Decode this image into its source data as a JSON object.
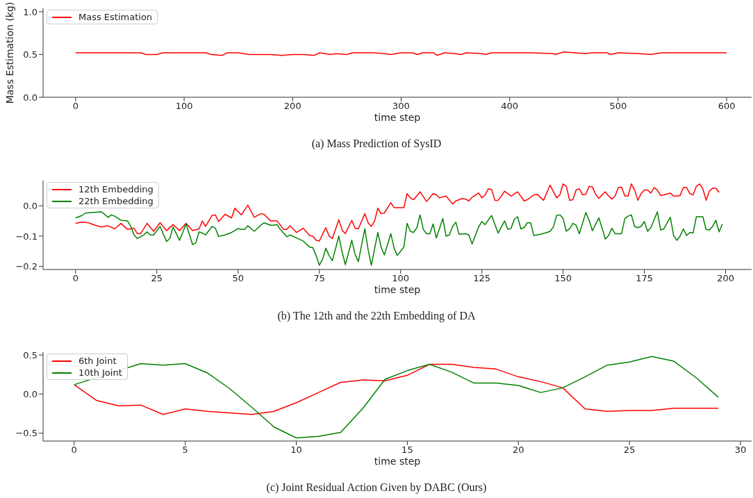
{
  "chart_data": [
    {
      "type": "line",
      "ylabel": "Mass Estimation (kg)",
      "xlabel": "time step",
      "annotations": [
        "(a) Mass Prediction of SysID"
      ],
      "legend": "top left",
      "xlim": [
        -30,
        623
      ],
      "ylim": [
        0,
        1.04
      ],
      "xticks": [
        0,
        100,
        200,
        300,
        400,
        500,
        600
      ],
      "yticks": [
        {
          "value": 0,
          "label": "0.0"
        },
        {
          "value": 0.5,
          "label": "0.5"
        },
        {
          "value": 1,
          "label": "1.0"
        }
      ],
      "series": [
        {
          "name": "Mass Estimation",
          "color": "#ff0000",
          "x": [
            0,
            20,
            40,
            60,
            65,
            75,
            80,
            100,
            120,
            125,
            135,
            140,
            150,
            160,
            180,
            190,
            200,
            210,
            220,
            225,
            235,
            240,
            250,
            255,
            270,
            275,
            285,
            290,
            300,
            310,
            315,
            320,
            330,
            333,
            340,
            350,
            355,
            360,
            375,
            378,
            383,
            400,
            420,
            440,
            442,
            450,
            460,
            470,
            475,
            490,
            493,
            500,
            520,
            530,
            540,
            560,
            580,
            600
          ],
          "values": [
            0.52,
            0.52,
            0.52,
            0.52,
            0.5,
            0.5,
            0.52,
            0.52,
            0.52,
            0.5,
            0.49,
            0.52,
            0.52,
            0.5,
            0.5,
            0.49,
            0.5,
            0.5,
            0.49,
            0.52,
            0.5,
            0.51,
            0.5,
            0.52,
            0.52,
            0.52,
            0.51,
            0.5,
            0.52,
            0.52,
            0.5,
            0.52,
            0.52,
            0.49,
            0.52,
            0.51,
            0.5,
            0.52,
            0.51,
            0.5,
            0.52,
            0.52,
            0.52,
            0.51,
            0.5,
            0.53,
            0.52,
            0.51,
            0.52,
            0.52,
            0.5,
            0.52,
            0.51,
            0.5,
            0.52,
            0.52,
            0.52,
            0.52
          ]
        }
      ]
    },
    {
      "type": "line",
      "xlabel": "time step",
      "annotations": [
        "(b) The 12th and the 22th Embedding of DA"
      ],
      "legend": "top left",
      "xlim": [
        -10,
        208
      ],
      "ylim": [
        -0.21,
        0.083
      ],
      "xticks": [
        0,
        25,
        50,
        75,
        100,
        125,
        150,
        175,
        200
      ],
      "yticks": [
        {
          "value": -0.2,
          "label": "−0.2"
        },
        {
          "value": -0.1,
          "label": "−0.1"
        },
        {
          "value": 0,
          "label": "0.0"
        }
      ],
      "series": [
        {
          "name": "12th Embedding",
          "color": "#ff0000",
          "x": [
            0,
            2,
            4,
            6,
            8,
            10,
            12,
            14,
            16,
            18,
            19,
            20,
            22,
            24,
            26,
            28,
            30,
            32,
            34,
            36,
            38,
            39,
            40,
            42,
            43,
            44,
            46,
            48,
            49,
            51,
            53,
            55,
            57,
            58,
            60,
            62,
            64,
            65,
            66,
            68,
            70,
            72,
            73,
            74,
            75,
            77,
            78,
            79,
            81,
            82,
            83,
            85,
            86,
            87,
            89,
            90,
            91,
            92,
            93,
            94,
            95,
            97,
            98,
            99,
            101,
            102,
            103,
            104,
            106,
            108,
            110,
            111,
            112,
            114,
            116,
            117,
            119,
            120,
            121,
            122,
            124,
            125,
            126,
            127,
            128,
            129,
            130,
            131,
            132,
            134,
            136,
            138,
            139,
            141,
            142,
            144,
            146,
            148,
            149,
            150,
            151,
            152,
            153,
            154,
            155,
            156,
            157,
            158,
            159,
            160,
            161,
            162,
            163,
            164,
            165,
            166,
            167,
            168,
            169,
            170,
            171,
            172,
            173,
            174,
            175,
            176,
            177,
            178,
            179,
            180,
            181,
            183,
            184,
            185,
            186,
            187,
            188,
            189,
            190,
            191,
            192,
            193,
            194,
            195,
            196,
            197,
            198
          ],
          "values": [
            -0.058,
            -0.054,
            -0.056,
            -0.064,
            -0.07,
            -0.066,
            -0.076,
            -0.058,
            -0.078,
            -0.074,
            -0.092,
            -0.092,
            -0.058,
            -0.084,
            -0.056,
            -0.082,
            -0.062,
            -0.082,
            -0.058,
            -0.082,
            -0.076,
            -0.05,
            -0.068,
            -0.032,
            -0.03,
            -0.052,
            -0.028,
            -0.04,
            -0.008,
            -0.03,
            0.002,
            -0.038,
            -0.026,
            -0.028,
            -0.05,
            -0.05,
            -0.078,
            -0.078,
            -0.066,
            -0.088,
            -0.074,
            -0.098,
            -0.1,
            -0.114,
            -0.116,
            -0.072,
            -0.1,
            -0.108,
            -0.046,
            -0.08,
            -0.092,
            -0.048,
            -0.074,
            -0.076,
            -0.026,
            -0.056,
            -0.068,
            -0.05,
            -0.008,
            -0.026,
            -0.024,
            0.01,
            -0.006,
            -0.006,
            -0.006,
            0.04,
            0.026,
            0.02,
            0.046,
            0.014,
            0.04,
            0.036,
            0.026,
            0.032,
            0.006,
            0.016,
            0.024,
            0.022,
            0.016,
            0.028,
            0.042,
            0.026,
            0.036,
            0.056,
            0.054,
            0.018,
            0.018,
            0.032,
            0.048,
            0.032,
            0.046,
            0.016,
            0.02,
            0.036,
            0.038,
            0.018,
            0.068,
            0.026,
            0.036,
            0.072,
            0.064,
            0.018,
            0.02,
            0.052,
            0.056,
            0.036,
            0.038,
            0.064,
            0.062,
            0.038,
            0.024,
            0.036,
            0.046,
            0.032,
            0.022,
            0.032,
            0.06,
            0.061,
            0.032,
            0.032,
            0.072,
            0.052,
            0.018,
            0.04,
            0.052,
            0.052,
            0.042,
            0.06,
            0.052,
            0.034,
            0.036,
            0.042,
            0.032,
            0.032,
            0.034,
            0.06,
            0.06,
            0.04,
            0.036,
            0.064,
            0.072,
            0.056,
            0.018,
            0.048,
            0.058,
            0.058,
            0.044
          ]
        },
        {
          "name": "22th Embedding",
          "color": "#008000",
          "x": [
            0,
            2,
            3,
            8,
            10,
            11,
            12,
            14,
            16,
            17,
            18,
            19,
            21,
            22,
            23,
            24,
            26,
            28,
            29,
            30,
            32,
            34,
            36,
            37,
            38,
            39,
            40,
            42,
            43,
            44,
            46,
            48,
            50,
            51,
            52,
            53,
            55,
            57,
            58,
            60,
            61,
            62,
            63,
            65,
            66,
            68,
            70,
            72,
            73,
            74,
            75,
            76,
            77,
            78,
            79,
            81,
            82,
            83,
            85,
            86,
            87,
            89,
            90,
            91,
            93,
            94,
            95,
            97,
            98,
            99,
            101,
            102,
            103,
            104,
            105,
            106,
            107,
            108,
            109,
            110,
            111,
            113,
            114,
            115,
            116,
            117,
            118,
            120,
            121,
            122,
            124,
            125,
            126,
            128,
            130,
            132,
            133,
            134,
            135,
            136,
            137,
            138,
            139,
            140,
            141,
            143,
            145,
            146,
            147,
            148,
            149,
            150,
            151,
            152,
            153,
            154,
            155,
            157,
            158,
            159,
            161,
            162,
            163,
            164,
            165,
            166,
            168,
            169,
            170,
            171,
            172,
            173,
            174,
            175,
            176,
            177,
            179,
            180,
            181,
            183,
            184,
            185,
            186,
            187,
            188,
            189,
            190,
            191,
            193,
            194,
            195,
            196,
            197,
            198,
            199
          ],
          "values": [
            -0.04,
            -0.032,
            -0.024,
            -0.02,
            -0.038,
            -0.03,
            -0.034,
            -0.048,
            -0.05,
            -0.068,
            -0.096,
            -0.108,
            -0.096,
            -0.086,
            -0.096,
            -0.096,
            -0.068,
            -0.118,
            -0.108,
            -0.07,
            -0.114,
            -0.06,
            -0.128,
            -0.122,
            -0.086,
            -0.09,
            -0.096,
            -0.068,
            -0.074,
            -0.101,
            -0.096,
            -0.088,
            -0.075,
            -0.078,
            -0.078,
            -0.066,
            -0.084,
            -0.064,
            -0.056,
            -0.064,
            -0.064,
            -0.062,
            -0.078,
            -0.102,
            -0.096,
            -0.106,
            -0.116,
            -0.136,
            -0.138,
            -0.164,
            -0.196,
            -0.176,
            -0.14,
            -0.164,
            -0.181,
            -0.1,
            -0.152,
            -0.194,
            -0.114,
            -0.16,
            -0.184,
            -0.076,
            -0.144,
            -0.196,
            -0.088,
            -0.136,
            -0.162,
            -0.092,
            -0.14,
            -0.164,
            -0.136,
            -0.058,
            -0.084,
            -0.088,
            -0.072,
            -0.03,
            -0.078,
            -0.092,
            -0.092,
            -0.06,
            -0.106,
            -0.042,
            -0.1,
            -0.096,
            -0.068,
            -0.054,
            -0.094,
            -0.092,
            -0.096,
            -0.126,
            -0.07,
            -0.052,
            -0.062,
            -0.032,
            -0.09,
            -0.05,
            -0.078,
            -0.074,
            -0.044,
            -0.036,
            -0.076,
            -0.072,
            -0.056,
            -0.056,
            -0.098,
            -0.094,
            -0.088,
            -0.084,
            -0.07,
            -0.032,
            -0.03,
            -0.042,
            -0.084,
            -0.076,
            -0.058,
            -0.064,
            -0.092,
            -0.022,
            -0.048,
            -0.082,
            -0.04,
            -0.074,
            -0.11,
            -0.098,
            -0.074,
            -0.092,
            -0.092,
            -0.042,
            -0.034,
            -0.03,
            -0.068,
            -0.072,
            -0.068,
            -0.052,
            -0.084,
            -0.072,
            -0.02,
            -0.08,
            -0.076,
            -0.038,
            -0.098,
            -0.114,
            -0.1,
            -0.076,
            -0.098,
            -0.088,
            -0.09,
            -0.036,
            -0.036,
            -0.078,
            -0.08,
            -0.068,
            -0.048,
            -0.086,
            -0.06
          ]
        }
      ]
    },
    {
      "type": "line",
      "xlabel": "time step",
      "annotations": [
        "(c) Joint Residual Action Given by DABC (Ours)"
      ],
      "legend": "top left",
      "xlim": [
        -1.4,
        30.5
      ],
      "ylim": [
        -0.6,
        0.536
      ],
      "xticks": [
        0,
        5,
        10,
        15,
        20,
        25,
        30
      ],
      "yticks": [
        {
          "value": -0.5,
          "label": "−0.5"
        },
        {
          "value": 0,
          "label": "0.0"
        },
        {
          "value": 0.5,
          "label": "0.5"
        }
      ],
      "series": [
        {
          "name": "6th Joint",
          "color": "#ff0000",
          "x": [
            0,
            1,
            2,
            3,
            4,
            5,
            6,
            7,
            8,
            9,
            10,
            11,
            12,
            13,
            14,
            15,
            16,
            17,
            18,
            19,
            20,
            21,
            22,
            23,
            24,
            25,
            26,
            27,
            28,
            29
          ],
          "values": [
            0.12,
            -0.08,
            -0.15,
            -0.14,
            -0.26,
            -0.19,
            -0.22,
            -0.24,
            -0.26,
            -0.22,
            -0.11,
            0.02,
            0.15,
            0.18,
            0.17,
            0.24,
            0.38,
            0.38,
            0.34,
            0.32,
            0.22,
            0.16,
            0.08,
            -0.19,
            -0.22,
            -0.21,
            -0.21,
            -0.18,
            -0.18,
            -0.18
          ]
        },
        {
          "name": "10th Joint",
          "color": "#008000",
          "x": [
            0,
            3,
            4,
            5,
            6,
            7,
            8,
            9,
            10,
            11,
            12,
            13,
            14,
            15,
            16,
            17,
            18,
            19,
            20,
            21,
            22,
            23,
            24,
            25,
            26,
            27,
            28,
            29
          ],
          "values": [
            0.12,
            0.39,
            0.37,
            0.39,
            0.27,
            0.07,
            -0.17,
            -0.42,
            -0.56,
            -0.54,
            -0.49,
            -0.18,
            0.19,
            0.3,
            0.38,
            0.28,
            0.14,
            0.14,
            0.11,
            0.02,
            0.08,
            0.22,
            0.37,
            0.41,
            0.48,
            0.42,
            0.21,
            -0.04
          ]
        }
      ]
    }
  ]
}
